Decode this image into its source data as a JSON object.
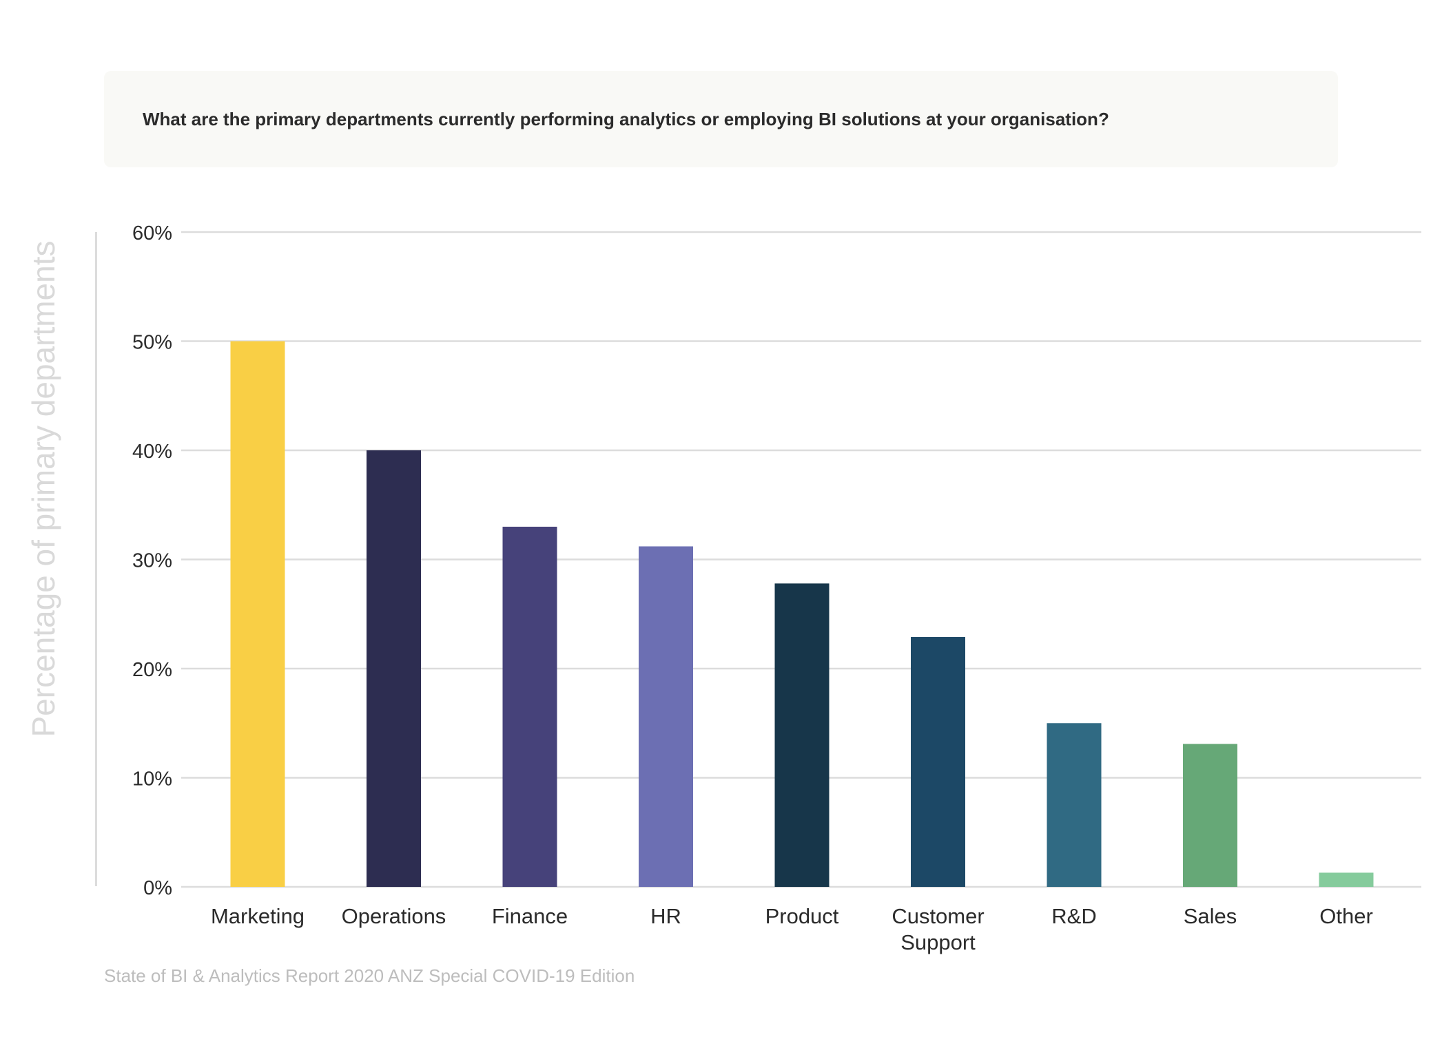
{
  "chart_data": {
    "type": "bar",
    "title": "What are the primary departments currently performing analytics or employing BI solutions at your organisation?",
    "ylabel": "Percentage of primary departments",
    "xlabel": "",
    "categories": [
      "Marketing",
      "Operations",
      "Finance",
      "HR",
      "Product",
      "Customer Support",
      "R&D",
      "Sales",
      "Other"
    ],
    "category_lines": [
      [
        "Marketing"
      ],
      [
        "Operations"
      ],
      [
        "Finance"
      ],
      [
        "HR"
      ],
      [
        "Product"
      ],
      [
        "Customer",
        "Support"
      ],
      [
        "R&D"
      ],
      [
        "Sales"
      ],
      [
        "Other"
      ]
    ],
    "values": [
      50,
      40,
      33,
      31.2,
      27.8,
      22.9,
      15,
      13.1,
      1.3
    ],
    "colors": [
      "#f9cf45",
      "#2d2d51",
      "#46427a",
      "#6c6fb3",
      "#17364a",
      "#1c4866",
      "#306a83",
      "#66a877",
      "#85cb9c"
    ],
    "ylim": [
      0,
      60
    ],
    "yticks": [
      0,
      10,
      20,
      30,
      40,
      50,
      60
    ],
    "ytick_labels": [
      "0%",
      "10%",
      "20%",
      "30%",
      "40%",
      "50%",
      "60%"
    ],
    "grid": true,
    "legend": "none",
    "source": "State of BI & Analytics Report 2020 ANZ Special COVID-19 Edition"
  }
}
